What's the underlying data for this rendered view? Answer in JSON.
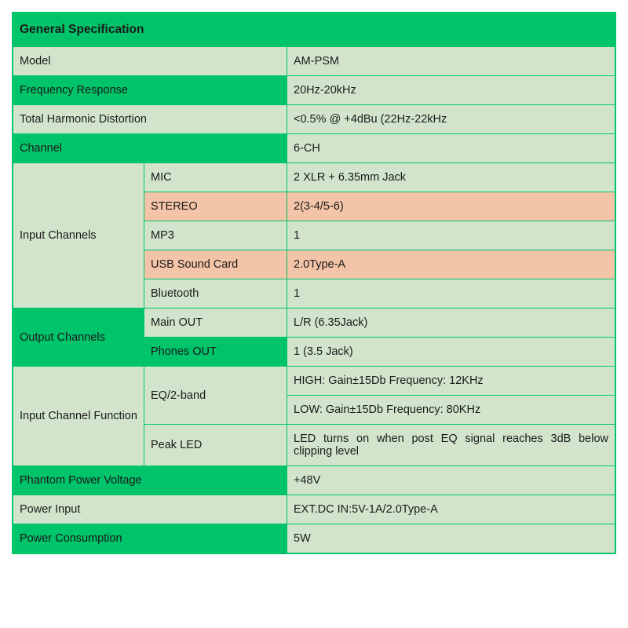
{
  "table": {
    "header": "General Specification",
    "rows": {
      "model": {
        "label": "Model",
        "value": "AM-PSM"
      },
      "freq": {
        "label": "Frequency Response",
        "value": "20Hz-20kHz"
      },
      "thd": {
        "label": "Total Harmonic Distortion",
        "value": "<0.5% @ +4dBu (22Hz-22kHz"
      },
      "channel": {
        "label": "Channel",
        "value": "6-CH"
      },
      "input_channels": {
        "label": "Input Channels",
        "mic": {
          "label": "MIC",
          "value": "2 XLR + 6.35mm Jack"
        },
        "stereo": {
          "label": "STEREO",
          "value": "2(3-4/5-6)"
        },
        "mp3": {
          "label": "MP3",
          "value": "1"
        },
        "usb": {
          "label": "USB Sound Card",
          "value": "2.0Type-A"
        },
        "bluetooth": {
          "label": "Bluetooth",
          "value": "1"
        }
      },
      "output_channels": {
        "label": "Output Channels",
        "main": {
          "label": "Main OUT",
          "value": "L/R (6.35Jack)"
        },
        "phones": {
          "label": "Phones OUT",
          "value": "1 (3.5 Jack)"
        }
      },
      "input_function": {
        "label": "Input Channel Function",
        "eq": {
          "label": "EQ/2-band",
          "high": "HIGH: Gain±15Db Frequency: 12KHz",
          "low": "LOW: Gain±15Db Frequency: 80KHz"
        },
        "peak": {
          "label": "Peak LED",
          "value": "LED turns on when post EQ signal reaches 3dB below clipping level"
        }
      },
      "phantom": {
        "label": "Phantom Power Voltage",
        "value": "+48V"
      },
      "power_input": {
        "label": "Power Input",
        "value": "EXT.DC IN:5V-1A/2.0Type-A"
      },
      "power_consumption": {
        "label": "Power Consumption",
        "value": "5W"
      }
    },
    "colors": {
      "border": "#00c46a",
      "bg_green": "#00c46a",
      "bg_light": "#d2e5cc",
      "bg_pink": "#f4c4a8",
      "text": "#1a1a1a"
    }
  }
}
